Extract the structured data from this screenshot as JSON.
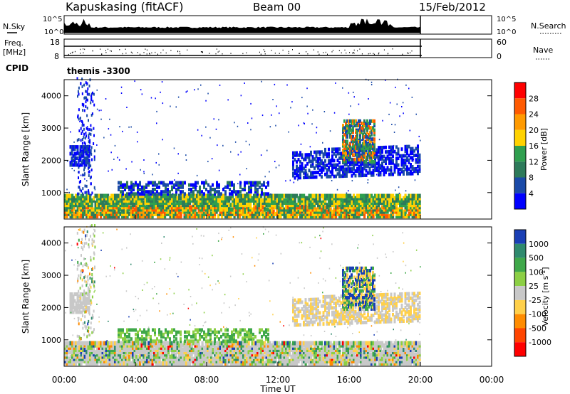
{
  "header": {
    "station": "Kapuskasing (fitACF)",
    "beam": "Beam 00",
    "date": "15/Feb/2012"
  },
  "panels": {
    "nsky_label": "N.Sky",
    "nsky_ticks": [
      "10^5",
      "10^0"
    ],
    "nsearch_label": "N.Search",
    "nsearch_ticks": [
      "10^5",
      "10^0"
    ],
    "freq_label": "Freq.",
    "freq_unit": "[MHz]",
    "freq_ticks": [
      "18",
      "8"
    ],
    "nave_label": "Nave",
    "nave_ticks": [
      "60",
      "0"
    ],
    "cpid_label": "CPID",
    "cpid_value": "themis -3300"
  },
  "chart_data": [
    {
      "type": "heatmap",
      "panel": "power",
      "xlabel": "Time UT",
      "ylabel": "Slant Range [km]",
      "x_ticks": [
        "00:00",
        "04:00",
        "08:00",
        "12:00",
        "16:00",
        "20:00",
        "00:00"
      ],
      "xlim_hours": [
        0,
        24
      ],
      "y_ticks": [
        1000,
        2000,
        3000,
        4000
      ],
      "ylim": [
        180,
        4500
      ],
      "colorbar": {
        "label": "Power [dB]",
        "ticks": [
          "28",
          "24",
          "20",
          "16",
          "12",
          "8",
          "4"
        ],
        "colors": [
          "#ff0000",
          "#ff5a00",
          "#ff9a00",
          "#ffd200",
          "#2f9f4f",
          "#2d7a5a",
          "#1a4aa8",
          "#0000ff"
        ]
      },
      "features": [
        {
          "name": "near range band",
          "x_hours": [
            0,
            20
          ],
          "range_km": [
            200,
            900
          ],
          "level_db": 14
        },
        {
          "name": "high latitude echoes",
          "x_hours": [
            13,
            20
          ],
          "range_km": [
            1300,
            3400
          ],
          "level_db": 6
        },
        {
          "name": "strong patch",
          "x_hours": [
            16,
            17
          ],
          "range_km": [
            2100,
            3000
          ],
          "level_db": 20
        }
      ],
      "data_end_hour": 20
    },
    {
      "type": "heatmap",
      "panel": "velocity",
      "xlabel": "Time UT",
      "ylabel": "Slant Range [km]",
      "x_ticks": [
        "00:00",
        "04:00",
        "08:00",
        "12:00",
        "16:00",
        "20:00",
        "00:00"
      ],
      "xlim_hours": [
        0,
        24
      ],
      "y_ticks": [
        1000,
        2000,
        3000,
        4000
      ],
      "ylim": [
        180,
        4500
      ],
      "colorbar": {
        "label": "Velocity [m s^-1]",
        "ticks": [
          "1000",
          "500",
          "100",
          "25",
          "-25",
          "-100",
          "-500",
          "-1000"
        ],
        "colors": [
          "#1a3fb5",
          "#2f8a6e",
          "#3fa84a",
          "#8ccf45",
          "#c8c8c8",
          "#ffd04a",
          "#ff8c00",
          "#ff4500",
          "#ff0000"
        ]
      },
      "data_end_hour": 20
    }
  ]
}
